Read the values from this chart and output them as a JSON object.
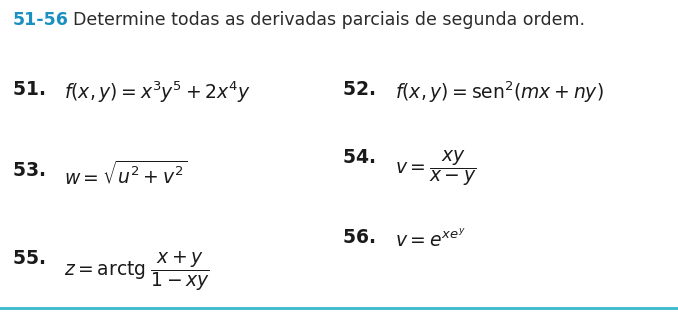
{
  "title_number": "51-56",
  "title_text": "  Determine todas as derivadas parciais de segunda ordem.",
  "title_number_color": "#1a8fc1",
  "title_text_color": "#2b2b2b",
  "background_color": "#ffffff",
  "bottom_line_color": "#3ab8c8",
  "title_fontsize": 12.5,
  "formula_fontsize": 13.5,
  "number_bold_fontsize": 13.5
}
